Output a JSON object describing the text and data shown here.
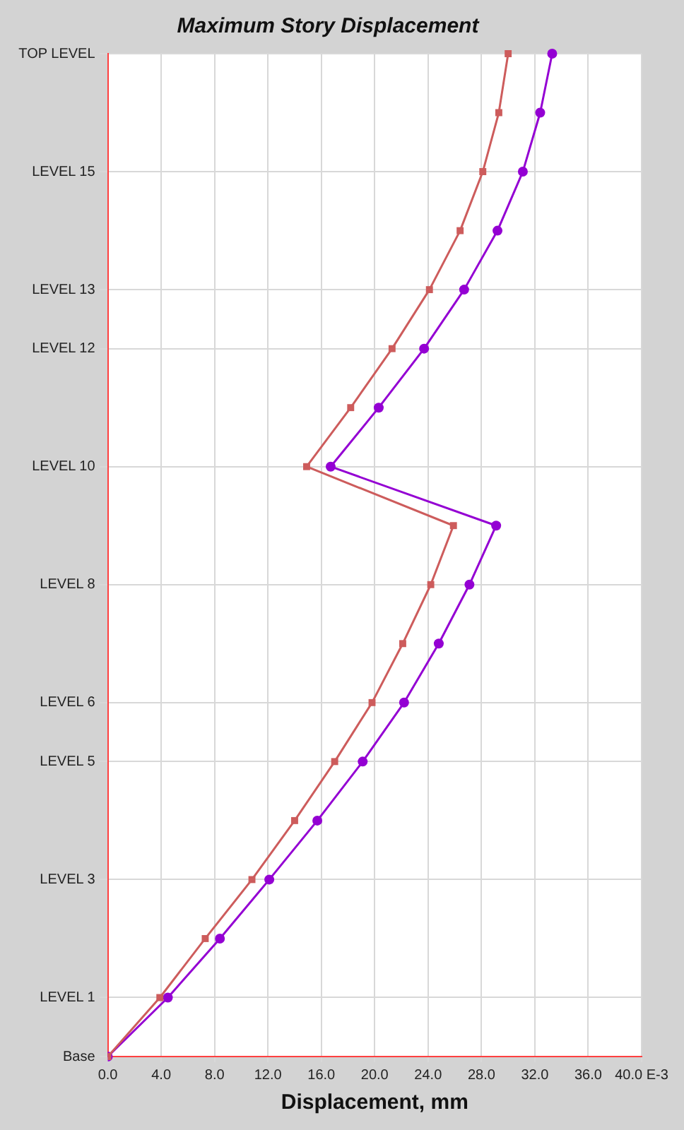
{
  "chart_data": {
    "type": "line",
    "title": "Maximum Story Displacement",
    "xlabel": "Displacement, mm",
    "orientation": "horizontal",
    "categories": [
      "TOP LEVEL",
      null,
      "LEVEL 15",
      null,
      "LEVEL 13",
      "LEVEL 12",
      null,
      "LEVEL 10",
      null,
      "LEVEL 8",
      null,
      "LEVEL 6",
      "LEVEL 5",
      null,
      "LEVEL 3",
      null,
      "LEVEL 1",
      "Base"
    ],
    "series": [
      {
        "color": "#cd5c5c",
        "marker": "square",
        "values": [
          30.0,
          29.3,
          28.1,
          26.4,
          24.1,
          21.3,
          18.2,
          14.9,
          25.9,
          24.2,
          22.1,
          19.8,
          17.0,
          14.0,
          10.8,
          7.3,
          3.9,
          0
        ]
      },
      {
        "color": "#9400d3",
        "marker": "circle",
        "values": [
          33.3,
          32.4,
          31.1,
          29.2,
          26.7,
          23.7,
          20.3,
          16.7,
          29.1,
          27.1,
          24.8,
          22.2,
          19.1,
          15.7,
          12.1,
          8.4,
          4.5,
          0
        ]
      }
    ],
    "xlim": [
      0,
      40
    ],
    "xticks": [
      {
        "value": 0,
        "label": "0.0"
      },
      {
        "value": 4,
        "label": "4.0"
      },
      {
        "value": 8,
        "label": "8.0"
      },
      {
        "value": 12,
        "label": "12.0"
      },
      {
        "value": 16,
        "label": "16.0"
      },
      {
        "value": 20,
        "label": "20.0"
      },
      {
        "value": 24,
        "label": "24.0"
      },
      {
        "value": 28,
        "label": "28.0"
      },
      {
        "value": 32,
        "label": "32.0"
      },
      {
        "value": 36,
        "label": "36.0"
      },
      {
        "value": 40,
        "label": "40.0 E-3"
      }
    ],
    "grid": true,
    "legend": false,
    "line_style": "solid"
  }
}
